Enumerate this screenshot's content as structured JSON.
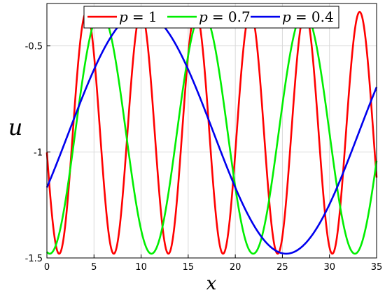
{
  "chart_data": {
    "type": "line",
    "xlabel": "x",
    "ylabel": "u",
    "xlim": [
      0,
      35
    ],
    "ylim": [
      -1.5,
      -0.3
    ],
    "xticks": [
      0,
      5,
      10,
      15,
      20,
      25,
      30,
      35
    ],
    "yticks": [
      -1.5,
      -1,
      -0.5
    ],
    "xtick_labels": [
      "0",
      "5",
      "10",
      "15",
      "20",
      "25",
      "30",
      "35"
    ],
    "ytick_labels": [
      "-1.5",
      "-1",
      "-0.5"
    ],
    "grid": true,
    "legend_position": "top",
    "series": [
      {
        "name": "p = 1",
        "var": "p",
        "eq": "= 1",
        "color": "#ff0000",
        "min": -1.48,
        "max": -0.34,
        "period": 5.8,
        "x_at_max": 4.2
      },
      {
        "name": "p = 0.7",
        "var": "p",
        "eq": "= 0.7",
        "color": "#00ee00",
        "min": -1.48,
        "max": -0.34,
        "period": 10.8,
        "x_at_max": 5.7
      },
      {
        "name": "p = 0.4",
        "var": "p",
        "eq": "= 0.4",
        "color": "#0000ee",
        "min": -1.48,
        "max": -0.34,
        "period": 30.8,
        "x_at_max": 10.0
      }
    ]
  }
}
